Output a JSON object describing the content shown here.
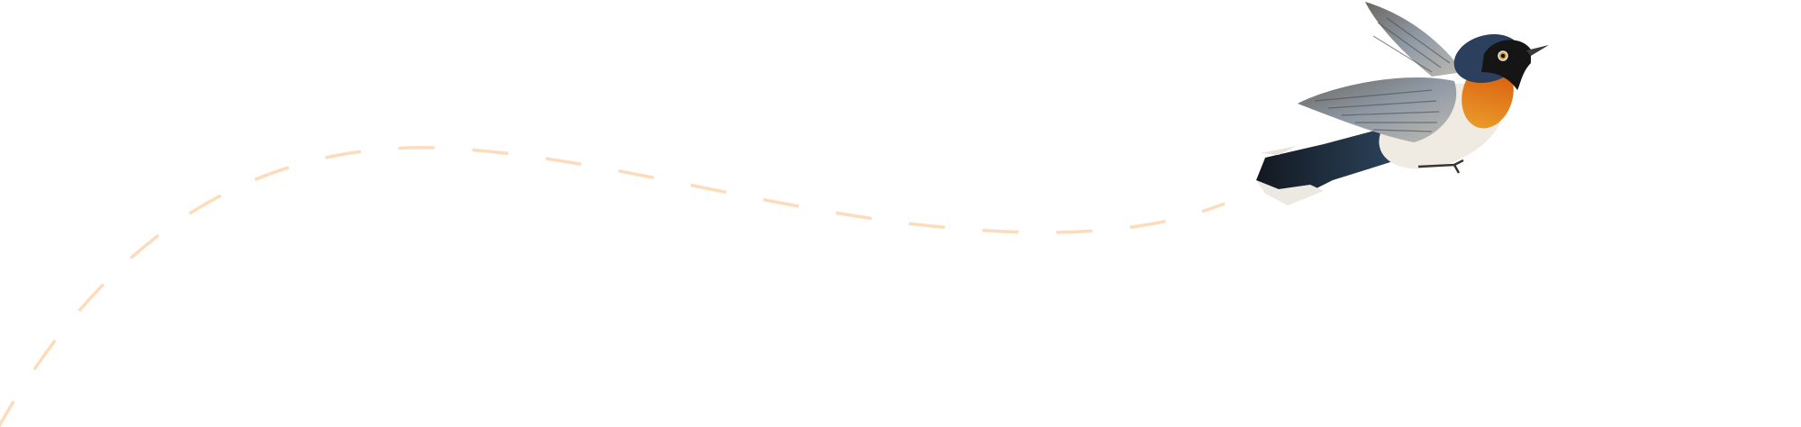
{
  "illustration": {
    "subject": "bird-in-flight",
    "colors": {
      "background": "#ffffff",
      "flight_path": "#fddcbc",
      "head": "#2c3f5c",
      "mask": "#151515",
      "throat": "#e0690f",
      "belly": "#efebe2",
      "wing": "#7b7f82",
      "tail": "#1c2634"
    }
  }
}
